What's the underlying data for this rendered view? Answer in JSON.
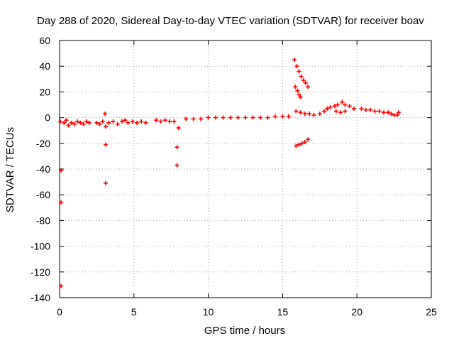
{
  "chart_data": {
    "type": "scatter",
    "title": "Day 288 of 2020, Sidereal Day-to-day VTEC variation (SDTVAR) for receiver boav",
    "xlabel": "GPS time / hours",
    "ylabel": "SDTVAR / TECUs",
    "xlim": [
      0,
      25
    ],
    "ylim": [
      -140,
      60
    ],
    "xticks": [
      0,
      5,
      10,
      15,
      20,
      25
    ],
    "yticks": [
      -140,
      -120,
      -100,
      -80,
      -60,
      -40,
      -20,
      0,
      20,
      40,
      60
    ],
    "grid": true,
    "marker": "+",
    "color": "#ff0000",
    "series": [
      {
        "name": "SDTVAR",
        "points": [
          [
            0.05,
            -3
          ],
          [
            0.1,
            -41
          ],
          [
            0.1,
            -66
          ],
          [
            0.1,
            -131
          ],
          [
            0.3,
            -4
          ],
          [
            0.45,
            -2
          ],
          [
            0.6,
            -6
          ],
          [
            0.8,
            -4
          ],
          [
            1.0,
            -5
          ],
          [
            1.2,
            -3
          ],
          [
            1.4,
            -4
          ],
          [
            1.6,
            -5
          ],
          [
            1.8,
            -3
          ],
          [
            2.0,
            -4
          ],
          [
            2.5,
            -4
          ],
          [
            2.7,
            -5
          ],
          [
            2.9,
            -3
          ],
          [
            3.05,
            3
          ],
          [
            3.1,
            -7
          ],
          [
            3.1,
            -21
          ],
          [
            3.1,
            -51
          ],
          [
            3.3,
            -4
          ],
          [
            3.6,
            -3
          ],
          [
            3.9,
            -5
          ],
          [
            4.2,
            -3
          ],
          [
            4.4,
            -2
          ],
          [
            4.6,
            -4
          ],
          [
            4.9,
            -3
          ],
          [
            5.2,
            -4
          ],
          [
            5.5,
            -3
          ],
          [
            5.8,
            -4
          ],
          [
            6.5,
            -2
          ],
          [
            6.8,
            -3
          ],
          [
            7.1,
            -2
          ],
          [
            7.4,
            -3
          ],
          [
            7.7,
            -3
          ],
          [
            7.9,
            -23
          ],
          [
            7.9,
            -37
          ],
          [
            8.0,
            -8
          ],
          [
            8.5,
            -1
          ],
          [
            9.0,
            -1
          ],
          [
            9.5,
            -1
          ],
          [
            10.0,
            0
          ],
          [
            10.5,
            0
          ],
          [
            11.0,
            0
          ],
          [
            11.5,
            0
          ],
          [
            12.0,
            0
          ],
          [
            12.5,
            0
          ],
          [
            13.0,
            0
          ],
          [
            13.5,
            0
          ],
          [
            14.0,
            0
          ],
          [
            14.5,
            1
          ],
          [
            15.0,
            1
          ],
          [
            15.4,
            1
          ],
          [
            15.8,
            45
          ],
          [
            15.95,
            40
          ],
          [
            16.1,
            36
          ],
          [
            16.25,
            32
          ],
          [
            16.4,
            29
          ],
          [
            16.55,
            27
          ],
          [
            16.7,
            24
          ],
          [
            15.85,
            24
          ],
          [
            16.0,
            21
          ],
          [
            16.1,
            18
          ],
          [
            16.2,
            16
          ],
          [
            15.9,
            -22
          ],
          [
            16.1,
            -21
          ],
          [
            16.3,
            -20
          ],
          [
            16.5,
            -19
          ],
          [
            16.7,
            -17
          ],
          [
            15.9,
            5
          ],
          [
            16.2,
            4
          ],
          [
            16.5,
            3
          ],
          [
            16.8,
            3
          ],
          [
            17.1,
            2
          ],
          [
            17.5,
            3
          ],
          [
            17.8,
            5
          ],
          [
            18.0,
            7
          ],
          [
            18.2,
            8
          ],
          [
            18.5,
            9
          ],
          [
            18.7,
            10
          ],
          [
            19.0,
            12
          ],
          [
            19.2,
            10
          ],
          [
            19.5,
            9
          ],
          [
            19.8,
            7
          ],
          [
            18.6,
            5
          ],
          [
            18.9,
            4
          ],
          [
            19.2,
            5
          ],
          [
            20.3,
            7
          ],
          [
            20.6,
            6
          ],
          [
            20.9,
            6
          ],
          [
            21.2,
            5
          ],
          [
            21.5,
            5
          ],
          [
            21.8,
            4
          ],
          [
            22.1,
            4
          ],
          [
            22.3,
            3
          ],
          [
            22.5,
            2
          ],
          [
            22.7,
            2
          ],
          [
            22.8,
            4
          ]
        ]
      }
    ]
  }
}
